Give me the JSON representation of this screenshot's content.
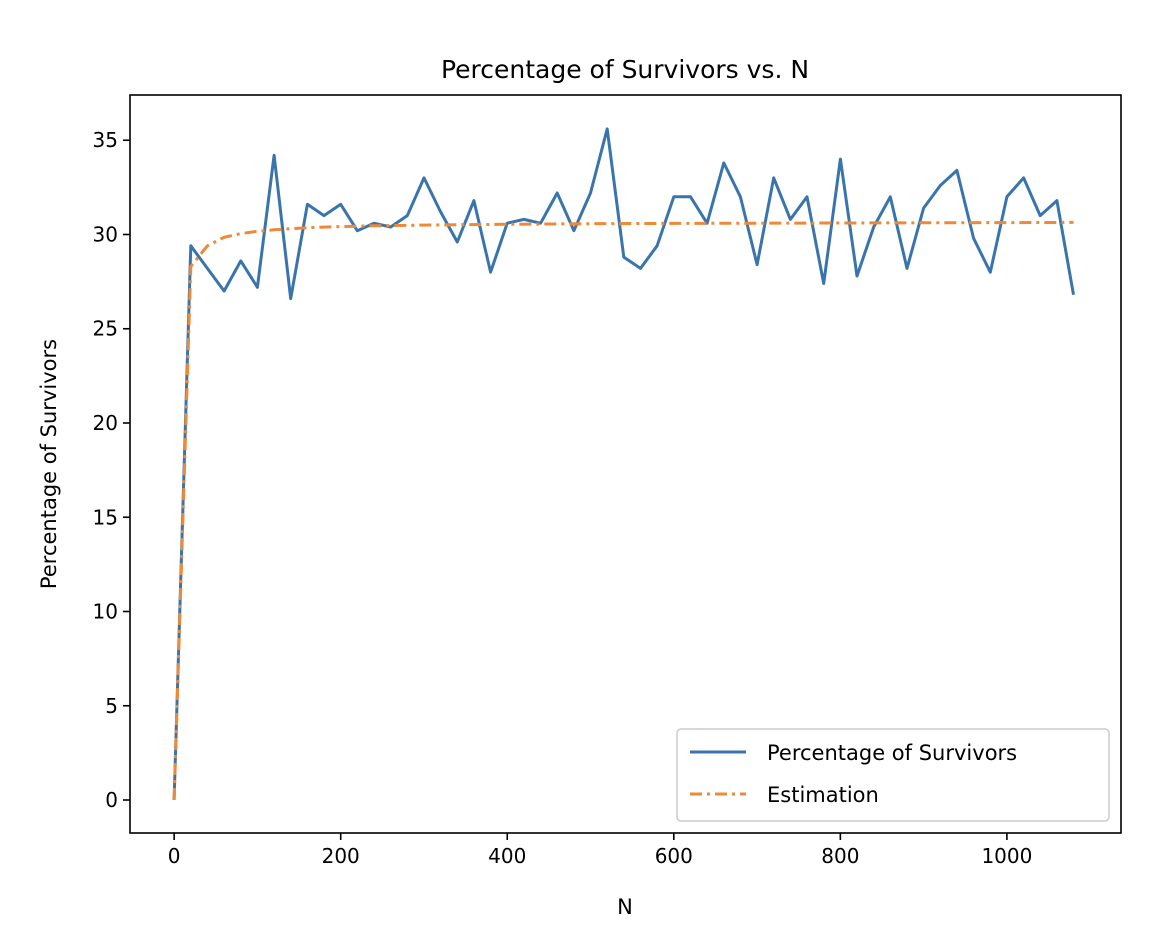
{
  "chart_data": {
    "type": "line",
    "title": "Percentage of Survivors vs. N",
    "xlabel": "N",
    "ylabel": "Percentage of Survivors",
    "xlim": [
      -53,
      1137
    ],
    "ylim": [
      -1.75,
      37.4
    ],
    "xticks": [
      0,
      200,
      400,
      600,
      800,
      1000
    ],
    "yticks": [
      0,
      5,
      10,
      15,
      20,
      25,
      30,
      35
    ],
    "grid": false,
    "legend_position": "bottom-right",
    "series": [
      {
        "name": "Percentage of Survivors",
        "color": "#3a74ad",
        "style": "solid",
        "x": [
          0,
          20,
          40,
          60,
          80,
          100,
          120,
          140,
          160,
          180,
          200,
          220,
          240,
          260,
          280,
          300,
          320,
          340,
          360,
          380,
          400,
          420,
          440,
          460,
          480,
          500,
          520,
          540,
          560,
          580,
          600,
          620,
          640,
          660,
          680,
          700,
          720,
          740,
          760,
          780,
          800,
          820,
          840,
          860,
          880,
          900,
          920,
          940,
          960,
          980,
          1000,
          1020,
          1040,
          1060,
          1080
        ],
        "y": [
          0,
          29.4,
          28.2,
          27.0,
          28.6,
          27.2,
          34.2,
          26.6,
          31.6,
          31.0,
          31.6,
          30.2,
          30.6,
          30.4,
          31.0,
          33.0,
          31.2,
          29.6,
          31.8,
          28.0,
          30.6,
          30.8,
          30.6,
          32.2,
          30.2,
          32.2,
          35.6,
          28.8,
          28.2,
          29.4,
          32.0,
          32.0,
          30.6,
          33.8,
          32.0,
          28.4,
          33.0,
          30.8,
          32.0,
          27.4,
          34.0,
          27.8,
          30.4,
          32.0,
          28.2,
          31.4,
          32.6,
          33.4,
          29.8,
          28.0,
          32.0,
          33.0,
          31.0,
          31.8,
          26.8
        ]
      },
      {
        "name": "Estimation",
        "color": "#ee8937",
        "style": "dashdot",
        "x": [
          0,
          20,
          40,
          60,
          80,
          100,
          120,
          140,
          160,
          180,
          200,
          220,
          240,
          260,
          280,
          300,
          340,
          400,
          500,
          600,
          700,
          800,
          900,
          1000,
          1080
        ],
        "y": [
          0,
          28.3,
          29.4,
          29.85,
          30.05,
          30.17,
          30.25,
          30.31,
          30.36,
          30.39,
          30.42,
          30.44,
          30.46,
          30.47,
          30.48,
          30.5,
          30.52,
          30.54,
          30.57,
          30.59,
          30.6,
          30.61,
          30.62,
          30.63,
          30.64
        ]
      }
    ]
  }
}
